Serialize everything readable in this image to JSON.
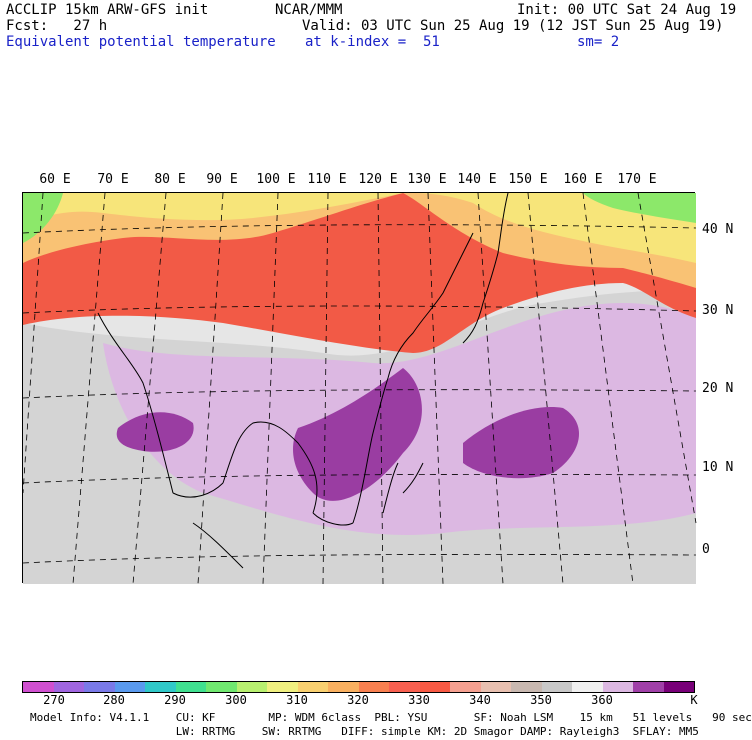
{
  "header": {
    "line1_left": "ACCLIP 15km ARW-GFS init",
    "line1_center": "NCAR/MMM",
    "line1_right": "Init: 00 UTC Sat 24 Aug 19",
    "line2_left": "Fcst:   27 h",
    "line2_right": "Valid: 03 UTC Sun 25 Aug 19 (12 JST Sun 25 Aug 19)",
    "field_name": "Equivalent potential temperature",
    "level": "at k-index =  51",
    "smoothing": "sm= 2"
  },
  "map": {
    "lon_labels": [
      "60 E",
      "70 E",
      "80 E",
      "90 E",
      "100 E",
      "110 E",
      "120 E",
      "130 E",
      "140 E",
      "150 E",
      "160 E",
      "170 E"
    ],
    "lat_labels": [
      "40 N",
      "30 N",
      "20 N",
      "10 N",
      "0"
    ],
    "colors": {
      "very_warm": "#f25a46",
      "warm": "#f9c274",
      "yellow": "#f7e57a",
      "green": "#8ce86a",
      "gray": "#bdbdbd",
      "lightgray": "#e6e6e6",
      "lilac": "#dcb8e2",
      "purple": "#9a3da2"
    }
  },
  "colorbar": {
    "colors": [
      "#d050d0",
      "#a066e0",
      "#7a7ae8",
      "#5a9aee",
      "#30c8c8",
      "#40e090",
      "#70e870",
      "#b8f070",
      "#f0f080",
      "#f9d070",
      "#f9b060",
      "#f88050",
      "#f86050",
      "#f85a44",
      "#f5a090",
      "#e8c0b0",
      "#c8b8b0",
      "#c8c8c8",
      "#f0f0f0",
      "#dcb8e2",
      "#a040a8",
      "#780078"
    ],
    "ticks": [
      "270",
      "280",
      "290",
      "300",
      "310",
      "320",
      "330",
      "340",
      "350",
      "360",
      "K"
    ]
  },
  "footer": {
    "line1": "Model Info: V4.1.1    CU: KF        MP: WDM 6class  PBL: YSU       SF: Noah LSM    15 km   51 levels   90 sec",
    "line2": "                      LW: RRTMG    SW: RRTMG   DIFF: simple KM: 2D Smagor DAMP: Rayleigh3  SFLAY: MM5"
  }
}
